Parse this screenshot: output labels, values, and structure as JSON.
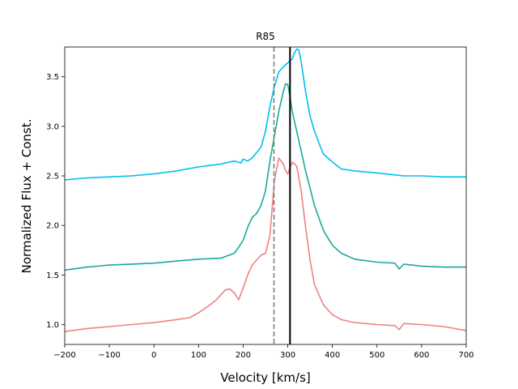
{
  "chart_data": {
    "type": "line",
    "title": "R85",
    "xlabel": "Velocity [km/s]",
    "ylabel": "Normalized Flux + Const.",
    "xlim": [
      -200,
      700
    ],
    "ylim": [
      0.8,
      3.8
    ],
    "xticks": [
      -200,
      -100,
      0,
      100,
      200,
      300,
      400,
      500,
      600,
      700
    ],
    "xtick_labels": [
      "−200",
      "−100",
      "0",
      "100",
      "200",
      "300",
      "400",
      "500",
      "600",
      "700"
    ],
    "yticks": [
      1.0,
      1.5,
      2.0,
      2.5,
      3.0,
      3.5
    ],
    "ytick_labels": [
      "1.0",
      "1.5",
      "2.0",
      "2.5",
      "3.0",
      "3.5"
    ],
    "vlines": [
      {
        "name": "dashed-reference-line",
        "x": 269,
        "color": "#808080",
        "style": "dashed"
      },
      {
        "name": "solid-reference-line",
        "x": 305,
        "color": "#000000",
        "style": "solid"
      }
    ],
    "series": [
      {
        "name": "top-profile",
        "color": "#00bfef",
        "x": [
          -200,
          -150,
          -100,
          -50,
          0,
          50,
          100,
          150,
          180,
          195,
          200,
          210,
          220,
          240,
          250,
          260,
          270,
          280,
          290,
          300,
          305,
          310,
          315,
          320,
          325,
          330,
          340,
          350,
          360,
          370,
          380,
          400,
          420,
          450,
          500,
          540,
          560,
          600,
          650,
          700
        ],
        "y": [
          2.46,
          2.48,
          2.49,
          2.5,
          2.52,
          2.55,
          2.59,
          2.62,
          2.65,
          2.63,
          2.67,
          2.65,
          2.68,
          2.79,
          2.95,
          3.2,
          3.4,
          3.55,
          3.6,
          3.64,
          3.66,
          3.68,
          3.74,
          3.78,
          3.77,
          3.65,
          3.35,
          3.1,
          2.95,
          2.83,
          2.72,
          2.64,
          2.57,
          2.55,
          2.53,
          2.51,
          2.5,
          2.5,
          2.49,
          2.49
        ]
      },
      {
        "name": "middle-profile",
        "color": "#1aa99b",
        "x": [
          -200,
          -150,
          -100,
          -50,
          0,
          50,
          100,
          150,
          180,
          190,
          200,
          210,
          220,
          230,
          240,
          250,
          260,
          270,
          280,
          290,
          295,
          300,
          305,
          310,
          320,
          330,
          340,
          360,
          380,
          400,
          420,
          450,
          500,
          540,
          550,
          560,
          600,
          650,
          700
        ],
        "y": [
          1.55,
          1.58,
          1.6,
          1.61,
          1.62,
          1.64,
          1.66,
          1.67,
          1.72,
          1.78,
          1.85,
          1.98,
          2.08,
          2.12,
          2.2,
          2.35,
          2.65,
          2.9,
          3.15,
          3.35,
          3.43,
          3.42,
          3.3,
          3.15,
          2.95,
          2.75,
          2.55,
          2.2,
          1.95,
          1.8,
          1.72,
          1.66,
          1.63,
          1.62,
          1.56,
          1.61,
          1.59,
          1.58,
          1.58
        ]
      },
      {
        "name": "bottom-profile",
        "color": "#f08080",
        "x": [
          -200,
          -150,
          -100,
          -50,
          0,
          50,
          80,
          100,
          120,
          140,
          160,
          170,
          180,
          190,
          200,
          210,
          220,
          230,
          240,
          250,
          260,
          270,
          280,
          290,
          295,
          300,
          305,
          310,
          320,
          330,
          340,
          350,
          360,
          380,
          400,
          420,
          450,
          500,
          540,
          550,
          560,
          600,
          650,
          700
        ],
        "y": [
          0.93,
          0.96,
          0.98,
          1.0,
          1.02,
          1.05,
          1.07,
          1.12,
          1.18,
          1.25,
          1.35,
          1.36,
          1.32,
          1.25,
          1.37,
          1.5,
          1.6,
          1.65,
          1.7,
          1.72,
          1.9,
          2.45,
          2.68,
          2.62,
          2.55,
          2.52,
          2.58,
          2.64,
          2.6,
          2.35,
          1.98,
          1.65,
          1.4,
          1.2,
          1.1,
          1.05,
          1.02,
          1.0,
          0.99,
          0.95,
          1.01,
          1.0,
          0.98,
          0.94
        ]
      }
    ]
  }
}
